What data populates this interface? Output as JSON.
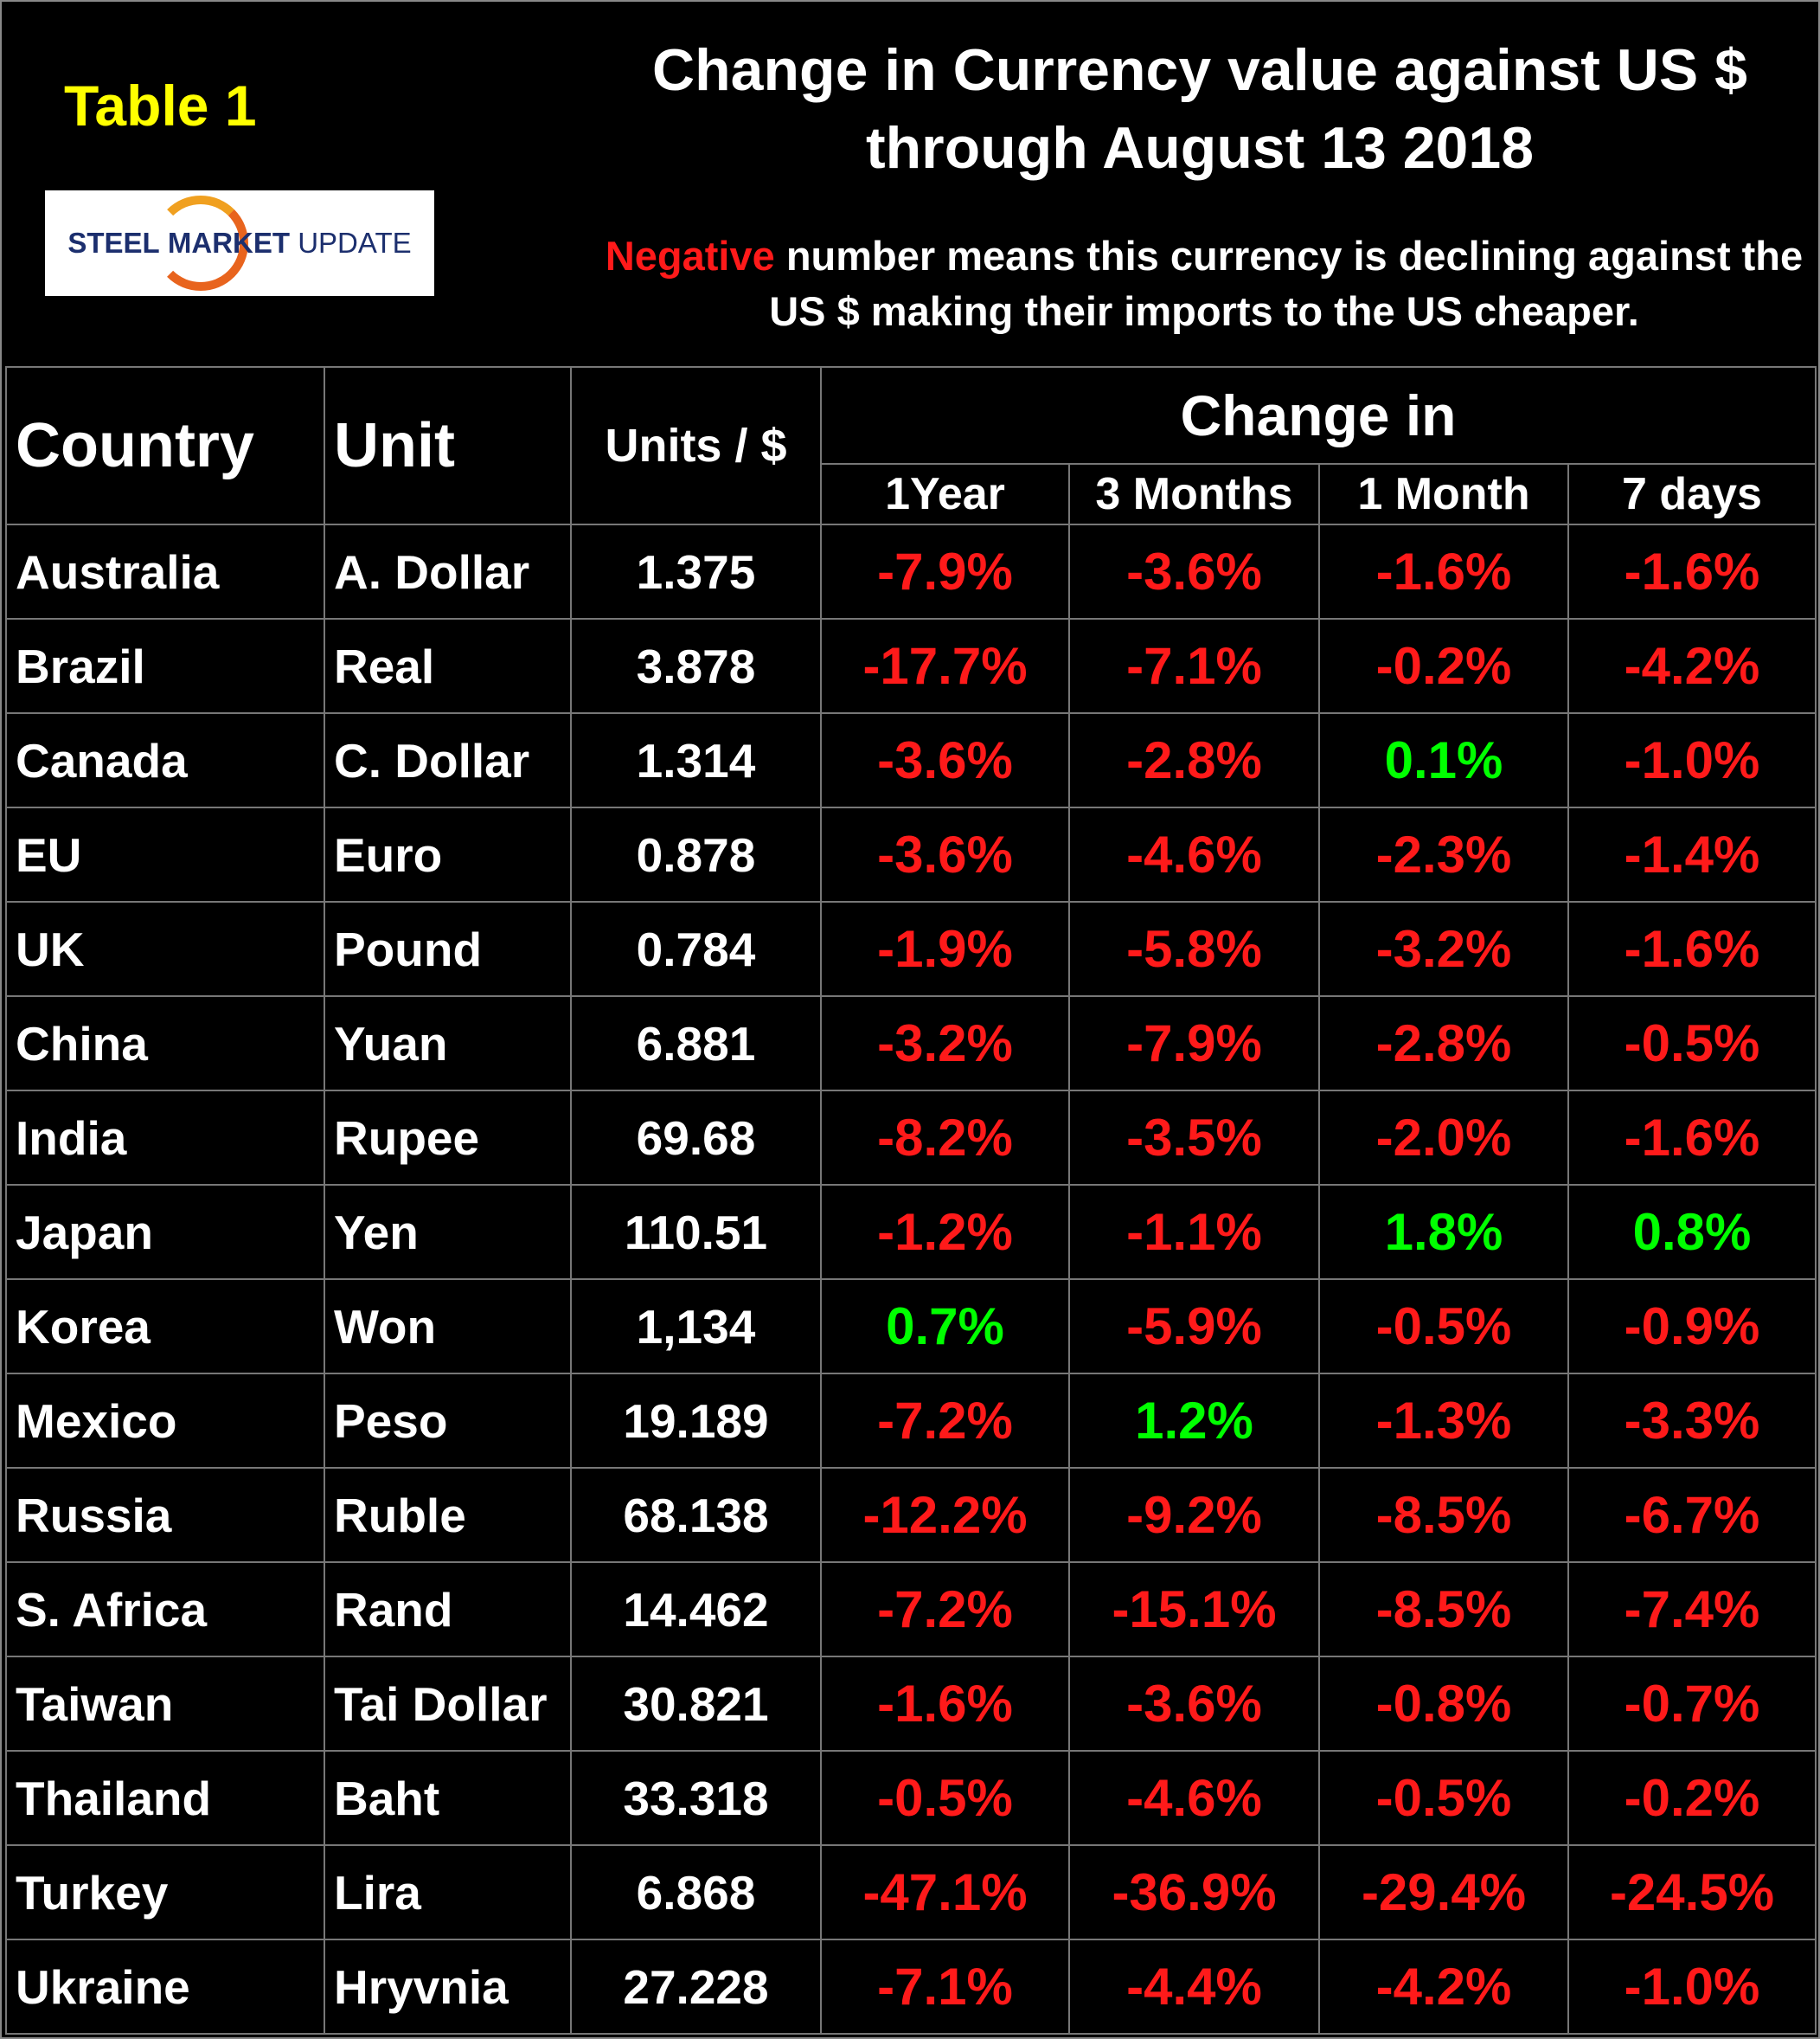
{
  "header": {
    "table_label": "Table 1",
    "logo": [
      "STEEL",
      "MARKET",
      "UPDATE"
    ],
    "title": [
      "Change in Currency value against US $",
      "through August 13 2018"
    ],
    "note": {
      "highlight": "Negative",
      "text": "number means this currency is declining against the US $ making their imports to the US cheaper."
    }
  },
  "table": {
    "columns": [
      "Country",
      "Unit",
      "Units / $"
    ],
    "group": "Change in",
    "subcolumns": [
      "1Year",
      "3 Months",
      "1 Month",
      "7 days"
    ],
    "rows": [
      [
        "Australia",
        "A. Dollar",
        "1.375",
        "-7.9%",
        "-3.6%",
        "-1.6%",
        "-1.6%"
      ],
      [
        "Brazil",
        "Real",
        "3.878",
        "-17.7%",
        "-7.1%",
        "-0.2%",
        "-4.2%"
      ],
      [
        "Canada",
        "C. Dollar",
        "1.314",
        "-3.6%",
        "-2.8%",
        "0.1%",
        "-1.0%"
      ],
      [
        "EU",
        "Euro",
        "0.878",
        "-3.6%",
        "-4.6%",
        "-2.3%",
        "-1.4%"
      ],
      [
        "UK",
        "Pound",
        "0.784",
        "-1.9%",
        "-5.8%",
        "-3.2%",
        "-1.6%"
      ],
      [
        "China",
        "Yuan",
        "6.881",
        "-3.2%",
        "-7.9%",
        "-2.8%",
        "-0.5%"
      ],
      [
        "India",
        "Rupee",
        "69.68",
        "-8.2%",
        "-3.5%",
        "-2.0%",
        "-1.6%"
      ],
      [
        "Japan",
        "Yen",
        "110.51",
        "-1.2%",
        "-1.1%",
        "1.8%",
        "0.8%"
      ],
      [
        "Korea",
        "Won",
        "1,134",
        "0.7%",
        "-5.9%",
        "-0.5%",
        "-0.9%"
      ],
      [
        "Mexico",
        "Peso",
        "19.189",
        "-7.2%",
        "1.2%",
        "-1.3%",
        "-3.3%"
      ],
      [
        "Russia",
        "Ruble",
        "68.138",
        "-12.2%",
        "-9.2%",
        "-8.5%",
        "-6.7%"
      ],
      [
        "S. Africa",
        "Rand",
        "14.462",
        "-7.2%",
        "-15.1%",
        "-8.5%",
        "-7.4%"
      ],
      [
        "Taiwan",
        "Tai Dollar",
        "30.821",
        "-1.6%",
        "-3.6%",
        "-0.8%",
        "-0.7%"
      ],
      [
        "Thailand",
        "Baht",
        "33.318",
        "-0.5%",
        "-4.6%",
        "-0.5%",
        "-0.2%"
      ],
      [
        "Turkey",
        "Lira",
        "6.868",
        "-47.1%",
        "-36.9%",
        "-29.4%",
        "-24.5%"
      ],
      [
        "Ukraine",
        "Hryvnia",
        "27.228",
        "-7.1%",
        "-4.4%",
        "-4.2%",
        "-1.0%"
      ]
    ]
  }
}
